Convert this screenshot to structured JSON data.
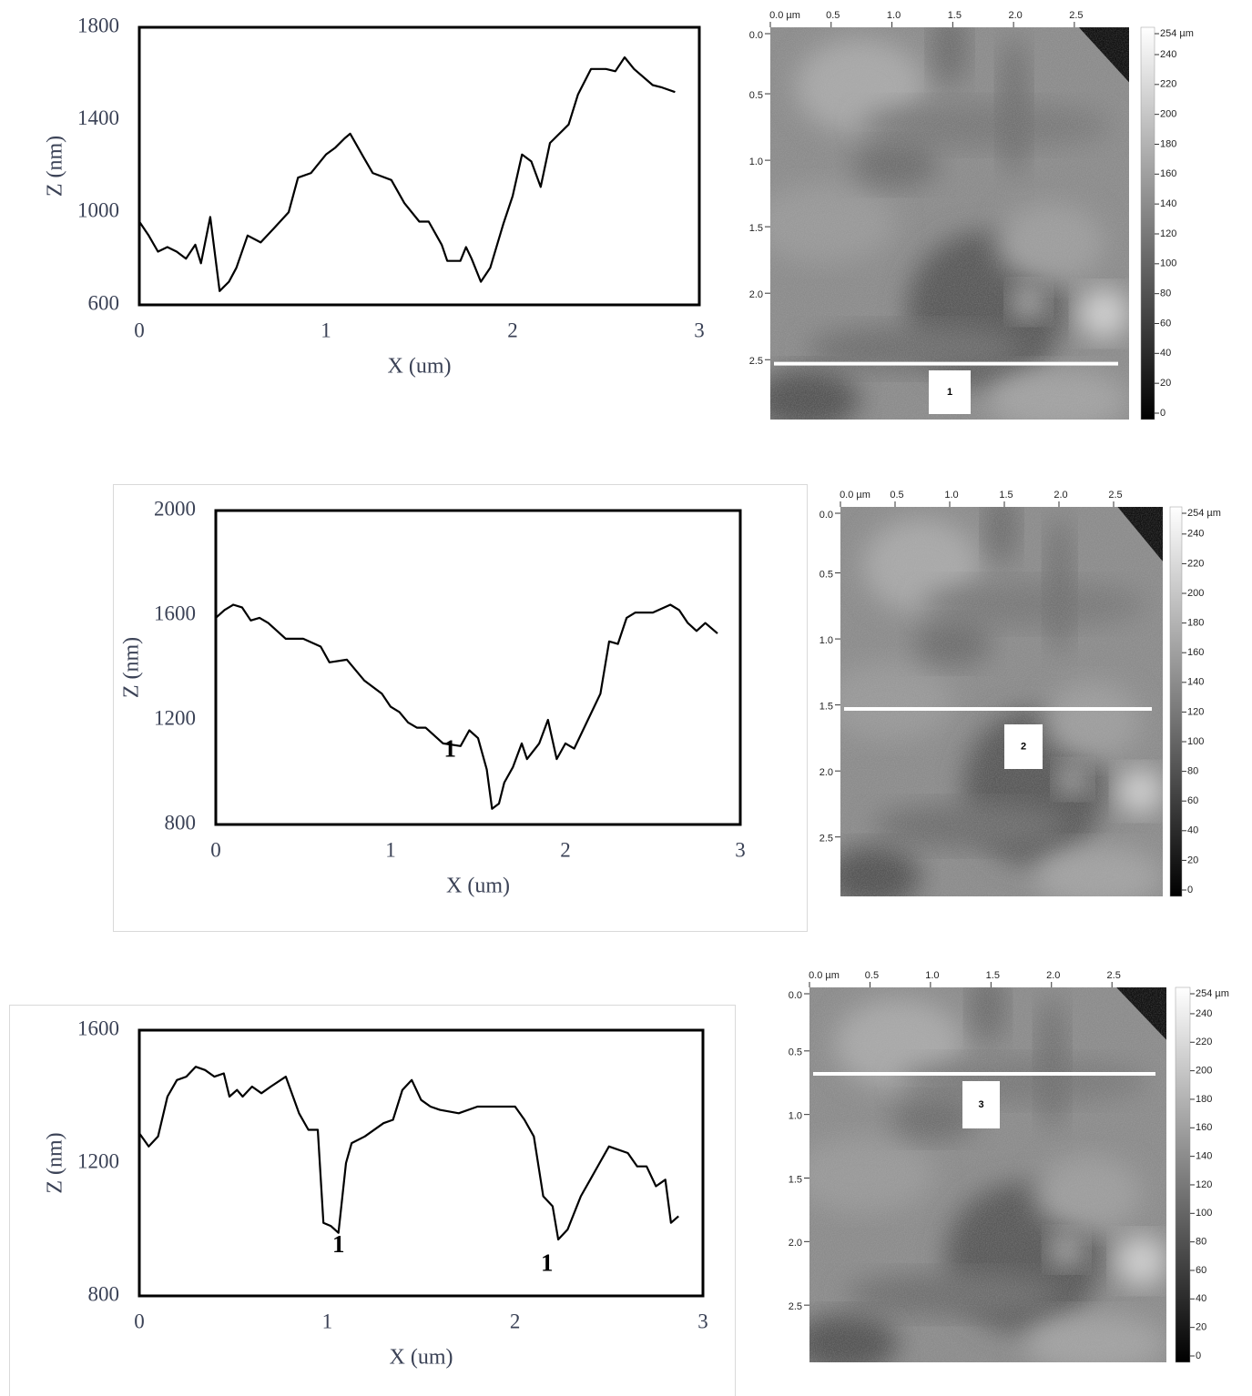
{
  "chart_data": [
    {
      "type": "line",
      "x_label": "X (um)",
      "y_label": "Z (nm)",
      "color": "#000000",
      "xlim": [
        0,
        3
      ],
      "ylim": [
        600,
        1800
      ],
      "xticks": [
        0,
        1,
        2,
        3
      ],
      "yticks": [
        600,
        1000,
        1400,
        1800
      ],
      "x": [
        0,
        0.05,
        0.1,
        0.15,
        0.2,
        0.25,
        0.3,
        0.33,
        0.38,
        0.43,
        0.48,
        0.52,
        0.58,
        0.65,
        0.72,
        0.8,
        0.85,
        0.92,
        1.0,
        1.05,
        1.1,
        1.13,
        1.2,
        1.25,
        1.35,
        1.42,
        1.5,
        1.55,
        1.62,
        1.65,
        1.72,
        1.75,
        1.78,
        1.83,
        1.88,
        1.95,
        2.0,
        2.05,
        2.1,
        2.15,
        2.2,
        2.3,
        2.35,
        2.42,
        2.5,
        2.55,
        2.6,
        2.65,
        2.75,
        2.8,
        2.87
      ],
      "values": [
        960,
        900,
        830,
        850,
        830,
        800,
        860,
        780,
        980,
        660,
        700,
        760,
        900,
        870,
        930,
        1000,
        1150,
        1170,
        1250,
        1280,
        1320,
        1340,
        1240,
        1170,
        1140,
        1040,
        960,
        960,
        860,
        790,
        790,
        850,
        800,
        700,
        760,
        950,
        1070,
        1250,
        1220,
        1110,
        1300,
        1380,
        1510,
        1620,
        1620,
        1610,
        1670,
        1620,
        1550,
        1540,
        1520
      ]
    },
    {
      "type": "afm",
      "xlim": [
        0,
        2.95
      ],
      "ylim": [
        0,
        2.95
      ],
      "xticks": [
        {
          "value": 0,
          "label": "0.0 µm"
        },
        0.5,
        {
          "value": 1,
          "label": "1.0"
        },
        1.5,
        {
          "value": 2,
          "label": "2.0"
        },
        2.5
      ],
      "yticks": [
        {
          "value": 0,
          "label": "0.0"
        },
        0.5,
        {
          "value": 1,
          "label": "1.0"
        },
        1.5,
        {
          "value": 2,
          "label": "2.0"
        },
        2.5
      ],
      "clim": [
        0,
        254
      ],
      "cticks": [
        {
          "value": 254,
          "label": "254 µm"
        },
        240,
        220,
        200,
        180,
        160,
        140,
        120,
        100,
        80,
        60,
        40,
        20,
        0
      ],
      "profile_y": 2.53,
      "annotation": "1"
    },
    {
      "type": "line",
      "x_label": "X (um)",
      "y_label": "Z (nm)",
      "color": "#000000",
      "xlim": [
        0,
        3
      ],
      "ylim": [
        800,
        2000
      ],
      "xticks": [
        0,
        1,
        2,
        3
      ],
      "yticks": [
        800,
        1200,
        1600,
        2000
      ],
      "x": [
        0,
        0.05,
        0.1,
        0.15,
        0.2,
        0.25,
        0.3,
        0.4,
        0.5,
        0.6,
        0.65,
        0.75,
        0.85,
        0.95,
        1.0,
        1.05,
        1.1,
        1.15,
        1.2,
        1.3,
        1.4,
        1.45,
        1.5,
        1.55,
        1.58,
        1.62,
        1.65,
        1.7,
        1.75,
        1.78,
        1.85,
        1.9,
        1.95,
        2.0,
        2.05,
        2.1,
        2.15,
        2.2,
        2.25,
        2.3,
        2.35,
        2.4,
        2.5,
        2.6,
        2.65,
        2.7,
        2.75,
        2.8,
        2.87
      ],
      "values": [
        1590,
        1620,
        1640,
        1630,
        1580,
        1590,
        1570,
        1510,
        1510,
        1480,
        1420,
        1430,
        1350,
        1300,
        1250,
        1230,
        1190,
        1170,
        1170,
        1110,
        1100,
        1160,
        1130,
        1010,
        860,
        880,
        960,
        1020,
        1110,
        1050,
        1110,
        1200,
        1050,
        1110,
        1090,
        1160,
        1230,
        1300,
        1500,
        1490,
        1590,
        1610,
        1610,
        1640,
        1620,
        1570,
        1540,
        1570,
        1530
      ],
      "annotations": [
        {
          "text": "1",
          "x": 1.34,
          "y": 1080
        }
      ]
    },
    {
      "type": "afm",
      "xlim": [
        0,
        2.95
      ],
      "ylim": [
        0,
        2.95
      ],
      "xticks": [
        {
          "value": 0,
          "label": "0.0 µm"
        },
        0.5,
        {
          "value": 1,
          "label": "1.0"
        },
        1.5,
        {
          "value": 2,
          "label": "2.0"
        },
        2.5
      ],
      "yticks": [
        {
          "value": 0,
          "label": "0.0"
        },
        0.5,
        {
          "value": 1,
          "label": "1.0"
        },
        1.5,
        {
          "value": 2,
          "label": "2.0"
        },
        2.5
      ],
      "clim": [
        0,
        254
      ],
      "cticks": [
        {
          "value": 254,
          "label": "254 µm"
        },
        240,
        220,
        200,
        180,
        160,
        140,
        120,
        100,
        80,
        60,
        40,
        20,
        0
      ],
      "profile_y": 1.53,
      "annotation": "2"
    },
    {
      "type": "line",
      "x_label": "X (um)",
      "y_label": "Z (nm)",
      "color": "#000000",
      "xlim": [
        0,
        3
      ],
      "ylim": [
        800,
        1600
      ],
      "xticks": [
        0,
        1,
        2,
        3
      ],
      "yticks": [
        800,
        1200,
        1600
      ],
      "x": [
        0,
        0.05,
        0.1,
        0.15,
        0.2,
        0.25,
        0.3,
        0.35,
        0.4,
        0.45,
        0.48,
        0.52,
        0.55,
        0.6,
        0.65,
        0.7,
        0.78,
        0.85,
        0.9,
        0.95,
        0.98,
        1.02,
        1.06,
        1.1,
        1.13,
        1.2,
        1.3,
        1.35,
        1.4,
        1.45,
        1.5,
        1.55,
        1.6,
        1.7,
        1.8,
        1.9,
        2.0,
        2.05,
        2.1,
        2.15,
        2.2,
        2.23,
        2.28,
        2.35,
        2.4,
        2.45,
        2.5,
        2.6,
        2.65,
        2.7,
        2.75,
        2.8,
        2.83,
        2.87
      ],
      "values": [
        1290,
        1250,
        1280,
        1400,
        1450,
        1460,
        1490,
        1480,
        1460,
        1470,
        1400,
        1420,
        1400,
        1430,
        1410,
        1430,
        1460,
        1350,
        1300,
        1300,
        1020,
        1010,
        990,
        1200,
        1260,
        1280,
        1320,
        1330,
        1420,
        1450,
        1390,
        1370,
        1360,
        1350,
        1370,
        1370,
        1370,
        1330,
        1280,
        1100,
        1070,
        970,
        1000,
        1100,
        1150,
        1200,
        1250,
        1230,
        1190,
        1190,
        1130,
        1150,
        1020,
        1040
      ],
      "annotations": [
        {
          "text": "1",
          "x": 1.06,
          "y": 948
        },
        {
          "text": "1",
          "x": 2.17,
          "y": 893
        }
      ]
    },
    {
      "type": "afm",
      "xlim": [
        0,
        2.95
      ],
      "ylim": [
        0,
        2.95
      ],
      "xticks": [
        {
          "value": 0,
          "label": "0.0 µm"
        },
        0.5,
        {
          "value": 1,
          "label": "1.0"
        },
        1.5,
        {
          "value": 2,
          "label": "2.0"
        },
        2.5
      ],
      "yticks": [
        {
          "value": 0,
          "label": "0.0"
        },
        0.5,
        {
          "value": 1,
          "label": "1.0"
        },
        1.5,
        {
          "value": 2,
          "label": "2.0"
        },
        2.5
      ],
      "clim": [
        0,
        254
      ],
      "cticks": [
        {
          "value": 254,
          "label": "254 µm"
        },
        240,
        220,
        200,
        180,
        160,
        140,
        120,
        100,
        80,
        60,
        40,
        20,
        0
      ],
      "profile_y": 0.68,
      "annotation": "3"
    }
  ]
}
